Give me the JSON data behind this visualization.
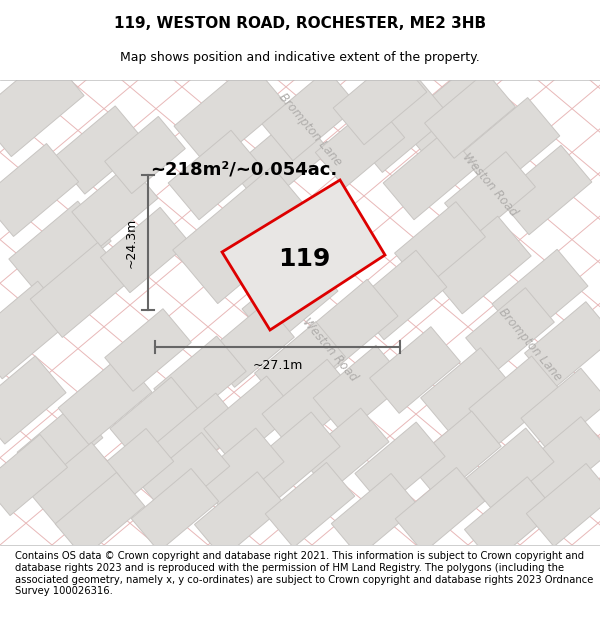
{
  "title": "119, WESTON ROAD, ROCHESTER, ME2 3HB",
  "subtitle": "Map shows position and indicative extent of the property.",
  "footer": "Contains OS data © Crown copyright and database right 2021. This information is subject to Crown copyright and database rights 2023 and is reproduced with the permission of HM Land Registry. The polygons (including the associated geometry, namely x, y co-ordinates) are subject to Crown copyright and database rights 2023 Ordnance Survey 100026316.",
  "area_label": "~218m²/~0.054ac.",
  "width_label": "~27.1m",
  "height_label": "~24.3m",
  "property_number": "119",
  "map_bg": "#f2f0ee",
  "block_color": "#dddbd8",
  "block_edge_color": "#c8c5c2",
  "grid_line_color": "#e8b8b8",
  "road_label_color": "#b0aeac",
  "property_fill": "#e8e6e4",
  "property_edge_color": "#dd0000",
  "dimension_color": "#666666",
  "title_fontsize": 11,
  "subtitle_fontsize": 9,
  "footer_fontsize": 7.2
}
